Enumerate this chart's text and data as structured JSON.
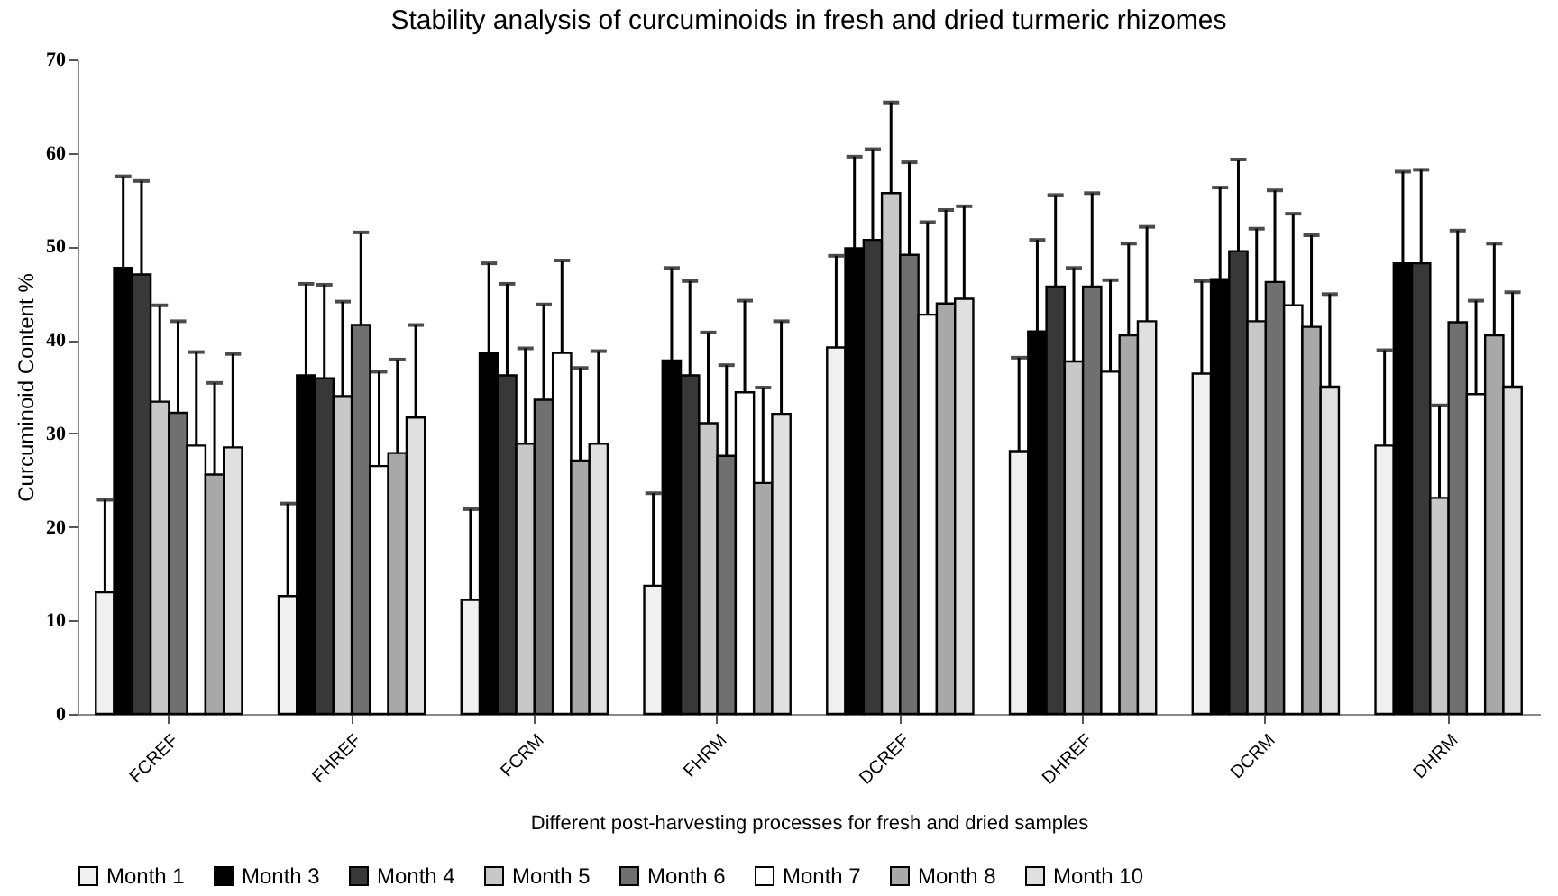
{
  "chart_data": {
    "type": "bar",
    "title": "Stability analysis of curcuminoids in fresh and dried turmeric rhizomes",
    "xlabel": "Different post-harvesting processes for fresh and dried samples",
    "ylabel": "Curcuminoid Content %",
    "categories": [
      "FCREF",
      "FHREF",
      "FCRM",
      "FHRM",
      "DCREF",
      "DHREF",
      "DCRM",
      "DHRM"
    ],
    "series": [
      {
        "name": "Month 1",
        "color": "#f0f0f0",
        "values": [
          13.0,
          12.6,
          12.2,
          13.7,
          39.2,
          28.1,
          36.4,
          28.7
        ],
        "errors": [
          9.9,
          9.9,
          9.7,
          9.9,
          9.8,
          10.0,
          9.9,
          10.2
        ]
      },
      {
        "name": "Month 3",
        "color": "#000000",
        "values": [
          47.7,
          36.2,
          38.6,
          37.8,
          49.8,
          40.9,
          46.5,
          48.2
        ],
        "errors": [
          9.8,
          9.8,
          9.6,
          9.9,
          9.8,
          9.8,
          9.8,
          9.8
        ]
      },
      {
        "name": "Month 4",
        "color": "#383838",
        "values": [
          47.0,
          35.9,
          36.2,
          36.2,
          50.7,
          45.7,
          49.5,
          48.2
        ],
        "errors": [
          10.0,
          10.0,
          9.8,
          10.1,
          9.7,
          9.8,
          9.8,
          10.0
        ]
      },
      {
        "name": "Month 5",
        "color": "#c8c8c8",
        "values": [
          33.4,
          34.0,
          28.9,
          31.1,
          55.7,
          37.7,
          42.0,
          23.1
        ],
        "errors": [
          10.3,
          10.1,
          10.2,
          9.7,
          9.7,
          10.0,
          9.9,
          9.9
        ]
      },
      {
        "name": "Month 6",
        "color": "#707070",
        "values": [
          32.2,
          41.6,
          33.6,
          27.6,
          49.1,
          45.7,
          46.2,
          41.9
        ],
        "errors": [
          9.8,
          9.9,
          10.2,
          9.7,
          9.9,
          10.0,
          9.8,
          9.8
        ]
      },
      {
        "name": "Month 7",
        "color": "#ffffff",
        "values": [
          28.7,
          26.5,
          38.6,
          34.4,
          42.7,
          36.6,
          43.7,
          34.2
        ],
        "errors": [
          10.0,
          10.1,
          9.9,
          9.8,
          9.9,
          9.8,
          9.8,
          10.0
        ]
      },
      {
        "name": "Month 8",
        "color": "#a8a8a8",
        "values": [
          25.6,
          27.9,
          27.1,
          24.7,
          43.9,
          40.5,
          41.4,
          40.5
        ],
        "errors": [
          9.8,
          10.0,
          9.9,
          10.2,
          10.0,
          9.8,
          9.8,
          9.8
        ]
      },
      {
        "name": "Month 10",
        "color": "#e0e0e0",
        "values": [
          28.5,
          31.7,
          28.9,
          32.1,
          44.4,
          42.0,
          35.0,
          35.0
        ],
        "errors": [
          10.0,
          9.9,
          9.9,
          9.9,
          9.9,
          10.1,
          9.9,
          10.1
        ]
      }
    ],
    "ylim": [
      0,
      70
    ],
    "yticks": [
      0,
      10,
      20,
      30,
      40,
      50,
      60,
      70
    ],
    "grid": false,
    "legend": "bottom"
  }
}
